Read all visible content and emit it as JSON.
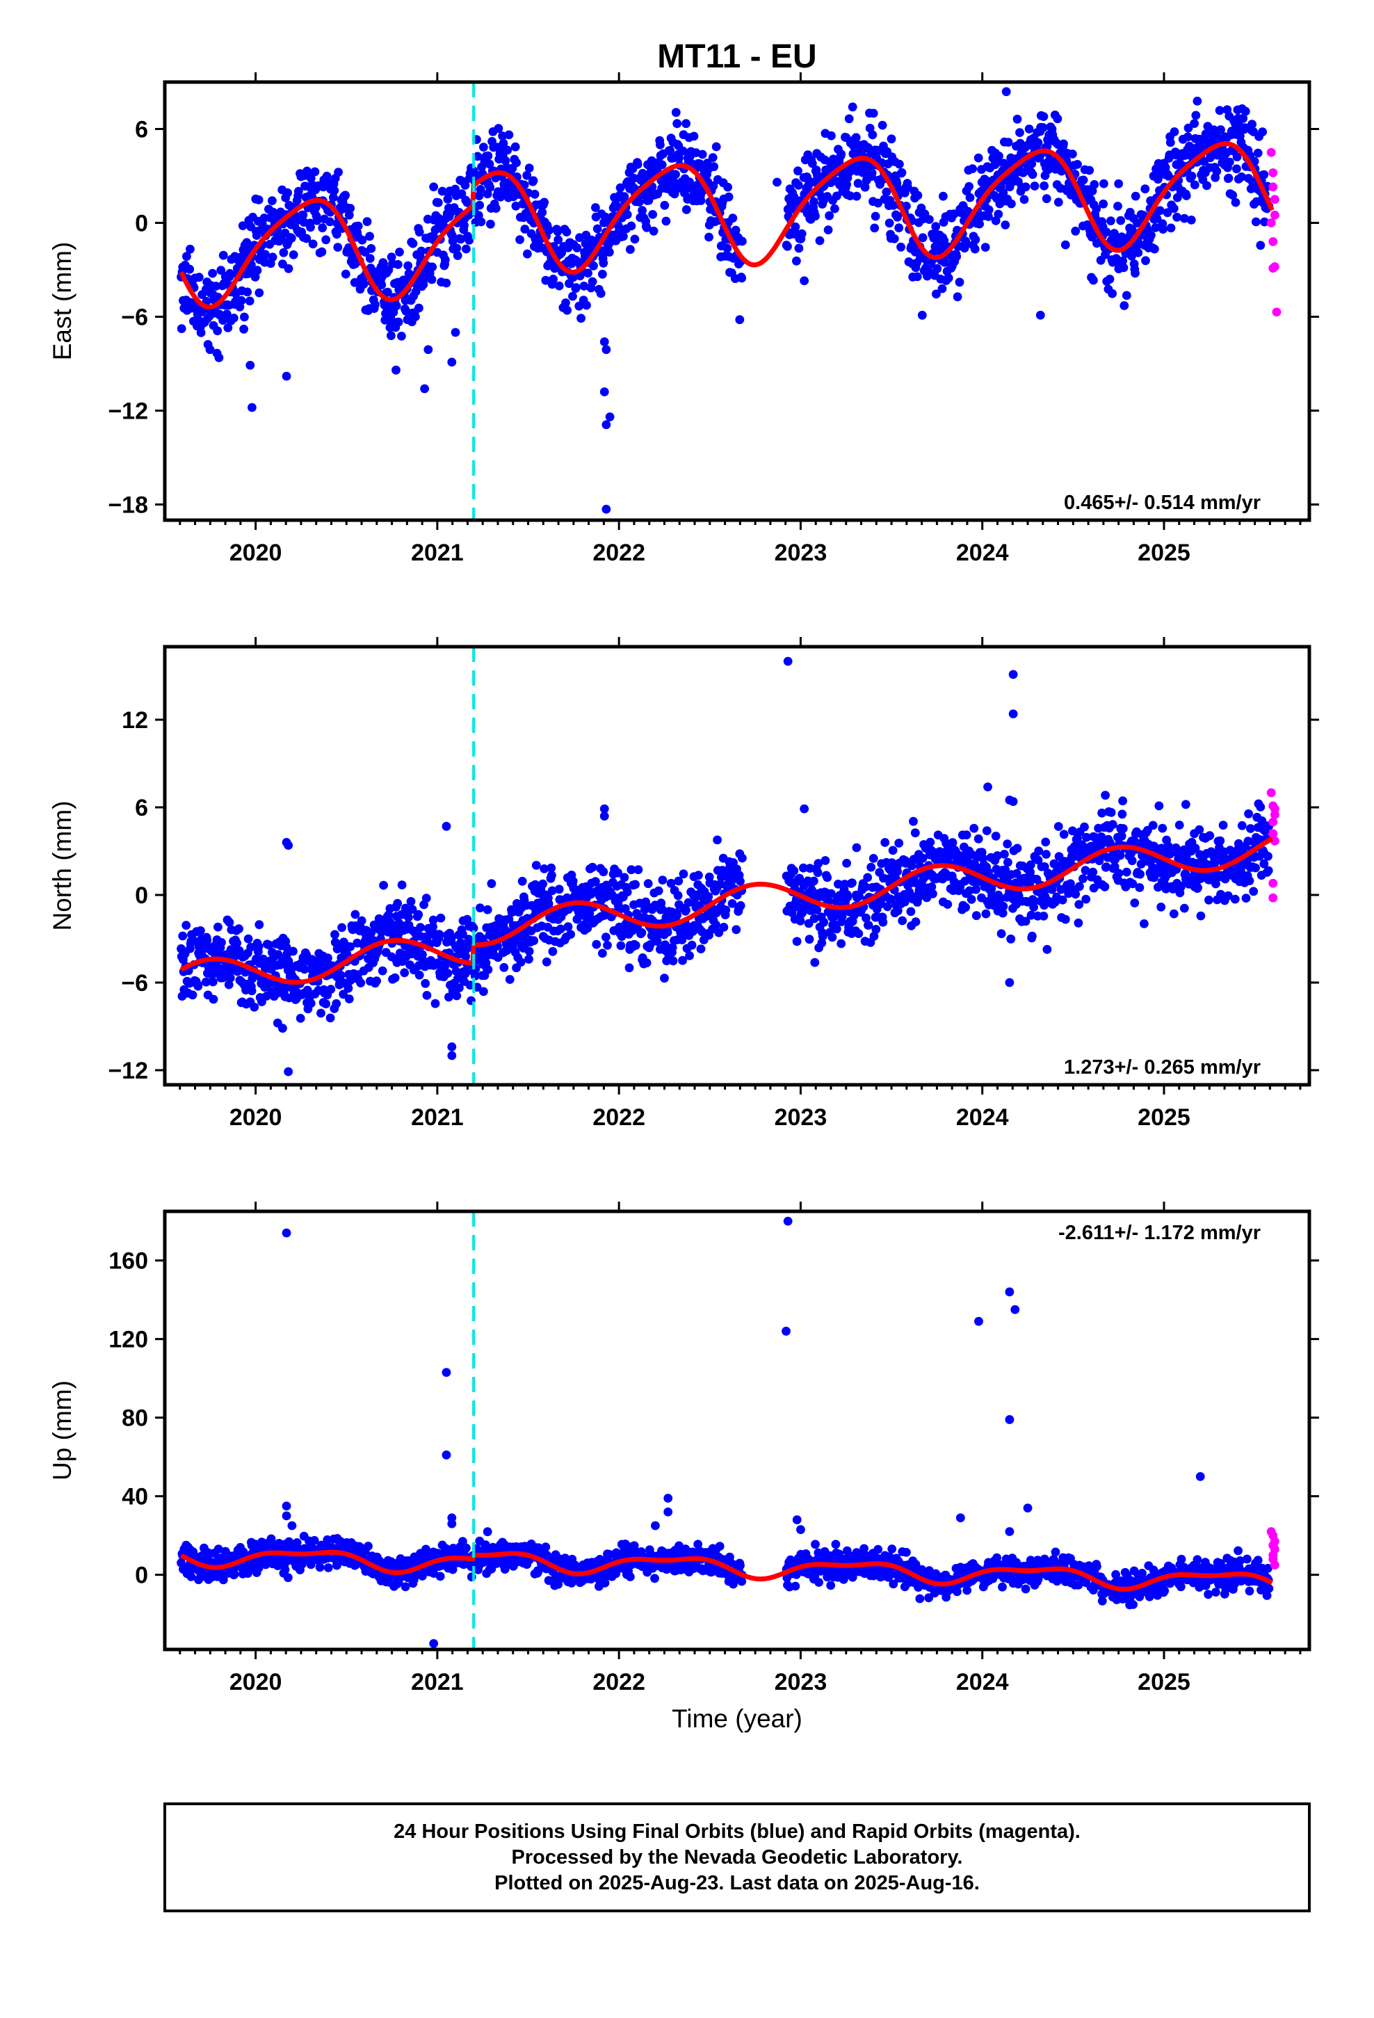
{
  "title": "MT11 - EU",
  "colors": {
    "final": "#0000ff",
    "rapid": "#ff00ff",
    "model": "#ff0000",
    "equipment_change": "#00e5e5"
  },
  "xlabel": "Time (year)",
  "caption": [
    "24 Hour Positions Using Final Orbits (blue) and Rapid Orbits (magenta).",
    "Processed by the Nevada Geodetic Laboratory.",
    "Plotted on 2025-Aug-23. Last data on 2025-Aug-16."
  ],
  "chart_data": [
    {
      "type": "scatter",
      "component": "east",
      "ylabel": "East (mm)",
      "xlim": [
        2019.5,
        2025.8
      ],
      "ylim": [
        -19,
        9
      ],
      "yticks": [
        6,
        0,
        -6,
        -12,
        -18
      ],
      "xticks": [
        2020,
        2021,
        2022,
        2023,
        2024,
        2025
      ],
      "equipment_change": 2021.2,
      "rate": "0.465+/- 0.514 mm/yr",
      "rate_position": "bottom-right",
      "model": {
        "intercept": -0.5,
        "slope": 0.465,
        "annual": [
          -0.5,
          3.1
        ],
        "semiannual": [
          0.5,
          -0.3
        ],
        "offset_at_change": 1.3
      },
      "final_series": {
        "name": "Final Orbits",
        "scatter_sd": 1.4,
        "last_epoch": 2025.58
      },
      "outliers": [
        [
          2019.98,
          -11.8
        ],
        [
          2019.97,
          -9.1
        ],
        [
          2020.17,
          -9.8
        ],
        [
          2020.93,
          -10.6
        ],
        [
          2020.95,
          -8.1
        ],
        [
          2021.08,
          -8.9
        ],
        [
          2021.1,
          -7.0
        ],
        [
          2020.98,
          2.3
        ],
        [
          2021.93,
          -18.3
        ],
        [
          2021.93,
          -12.9
        ],
        [
          2021.92,
          -10.8
        ],
        [
          2021.95,
          -12.4
        ],
        [
          2021.92,
          -7.6
        ],
        [
          2021.93,
          -8.1
        ],
        [
          2022.87,
          2.6
        ],
        [
          2023.02,
          -3.7
        ],
        [
          2024.32,
          -5.9
        ],
        [
          2024.75,
          2.5
        ],
        [
          2025.25,
          5.0
        ],
        [
          2025.38,
          4.6
        ]
      ],
      "rapid_points": [
        [
          2025.59,
          4.5
        ],
        [
          2025.6,
          3.2
        ],
        [
          2025.6,
          2.3
        ],
        [
          2025.61,
          1.5
        ],
        [
          2025.61,
          0.5
        ],
        [
          2025.6,
          -1.2
        ],
        [
          2025.61,
          -2.8
        ],
        [
          2025.6,
          -2.9
        ],
        [
          2025.62,
          -5.7
        ],
        [
          2025.59,
          0.0
        ]
      ]
    },
    {
      "type": "scatter",
      "component": "north",
      "ylabel": "North (mm)",
      "xlim": [
        2019.5,
        2025.8
      ],
      "ylim": [
        -13,
        17
      ],
      "yticks": [
        12,
        6,
        0,
        -6,
        -12
      ],
      "xticks": [
        2020,
        2021,
        2022,
        2023,
        2024,
        2025
      ],
      "equipment_change": 2021.2,
      "rate": "1.273+/- 0.265 mm/yr",
      "rate_position": "bottom-right",
      "model": {
        "intercept": -2.0,
        "slope": 1.273,
        "annual": [
          0.0,
          -1.1
        ],
        "semiannual": [
          0.0,
          0.0
        ],
        "offset_at_change": 1.3
      },
      "final_series": {
        "name": "Final Orbits",
        "scatter_sd": 1.4,
        "last_epoch": 2025.58
      },
      "outliers": [
        [
          2020.17,
          3.6
        ],
        [
          2020.18,
          3.4
        ],
        [
          2020.18,
          -12.1
        ],
        [
          2021.05,
          4.7
        ],
        [
          2021.08,
          -10.4
        ],
        [
          2021.08,
          -11.0
        ],
        [
          2021.92,
          5.9
        ],
        [
          2021.92,
          5.4
        ],
        [
          2022.25,
          -5.7
        ],
        [
          2022.93,
          16.0
        ],
        [
          2023.02,
          5.9
        ],
        [
          2024.03,
          7.4
        ],
        [
          2024.15,
          6.5
        ],
        [
          2024.17,
          6.4
        ],
        [
          2024.17,
          15.1
        ],
        [
          2024.17,
          12.4
        ],
        [
          2024.15,
          -6.0
        ],
        [
          2025.12,
          6.2
        ]
      ],
      "rapid_points": [
        [
          2025.59,
          7.0
        ],
        [
          2025.6,
          6.1
        ],
        [
          2025.61,
          5.9
        ],
        [
          2025.6,
          5.0
        ],
        [
          2025.6,
          4.2
        ],
        [
          2025.61,
          3.7
        ],
        [
          2025.6,
          0.8
        ],
        [
          2025.6,
          -0.2
        ],
        [
          2025.61,
          5.5
        ]
      ]
    },
    {
      "type": "scatter",
      "component": "up",
      "ylabel": "Up (mm)",
      "xlim": [
        2019.5,
        2025.8
      ],
      "ylim": [
        -38,
        185
      ],
      "yticks": [
        160,
        120,
        80,
        40,
        0
      ],
      "xticks": [
        2020,
        2021,
        2022,
        2023,
        2024,
        2025
      ],
      "equipment_change": 2021.2,
      "rate": "-2.611+/- 1.172 mm/yr",
      "rate_position": "top-right",
      "model": {
        "intercept": 2.5,
        "slope": -2.611,
        "annual": [
          -1.0,
          4.0
        ],
        "semiannual": [
          1.8,
          0.3
        ],
        "offset_at_change": 2.0
      },
      "final_series": {
        "name": "Final Orbits",
        "scatter_sd": 3.6,
        "last_epoch": 2025.58
      },
      "outliers": [
        [
          2020.17,
          174
        ],
        [
          2020.17,
          35
        ],
        [
          2020.17,
          30
        ],
        [
          2020.2,
          25
        ],
        [
          2021.05,
          103
        ],
        [
          2021.05,
          61
        ],
        [
          2021.08,
          29
        ],
        [
          2021.08,
          26
        ],
        [
          2020.98,
          -35
        ],
        [
          2022.27,
          39
        ],
        [
          2022.27,
          32
        ],
        [
          2022.2,
          25
        ],
        [
          2022.93,
          180
        ],
        [
          2022.92,
          124
        ],
        [
          2022.98,
          28
        ],
        [
          2023.0,
          23
        ],
        [
          2023.98,
          129
        ],
        [
          2024.15,
          144
        ],
        [
          2024.18,
          135
        ],
        [
          2024.15,
          79
        ],
        [
          2024.25,
          34
        ],
        [
          2023.88,
          29
        ],
        [
          2025.2,
          50
        ],
        [
          2024.15,
          22
        ]
      ],
      "rapid_points": [
        [
          2025.59,
          22
        ],
        [
          2025.6,
          20
        ],
        [
          2025.61,
          17
        ],
        [
          2025.6,
          15
        ],
        [
          2025.61,
          13
        ],
        [
          2025.6,
          10
        ],
        [
          2025.6,
          8
        ],
        [
          2025.61,
          5
        ]
      ]
    }
  ]
}
